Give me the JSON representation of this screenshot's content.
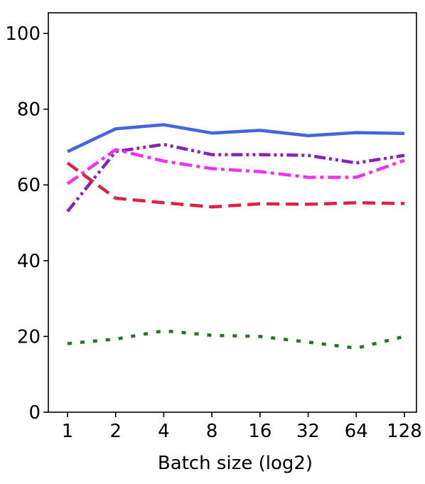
{
  "chart_data": {
    "type": "line",
    "xlabel": "Batch size (log2)",
    "ylabel": "",
    "x_scale": "log2",
    "x": [
      1,
      2,
      4,
      8,
      16,
      32,
      64,
      128
    ],
    "x_tick_labels": [
      "1",
      "2",
      "4",
      "8",
      "16",
      "32",
      "64",
      "128"
    ],
    "ylim": [
      0,
      100
    ],
    "y_ticks": [
      0,
      20,
      40,
      60,
      80,
      100
    ],
    "y_tick_labels": [
      "0",
      "20",
      "40",
      "60",
      "80",
      "100"
    ],
    "grid": false,
    "legend": "none",
    "series": [
      {
        "color": "#4466dd",
        "style": "solid",
        "values": [
          68.8,
          74.8,
          75.9,
          73.7,
          74.4,
          73.0,
          73.8,
          73.6
        ]
      },
      {
        "color": "#8822bb",
        "style": "dashdotdot",
        "values": [
          53.0,
          68.8,
          70.7,
          68.0,
          68.0,
          67.8,
          65.8,
          67.8
        ]
      },
      {
        "color": "#ee33ee",
        "style": "dashdot",
        "values": [
          60.3,
          69.3,
          66.3,
          64.3,
          63.5,
          62.0,
          62.0,
          66.5
        ]
      },
      {
        "color": "#dd2244",
        "style": "dashed",
        "values": [
          65.8,
          56.5,
          55.3,
          54.2,
          55.0,
          54.9,
          55.3,
          55.1
        ]
      },
      {
        "color": "#227722",
        "style": "dotted",
        "values": [
          18.1,
          19.3,
          21.5,
          20.3,
          20.0,
          18.5,
          16.9,
          20.0
        ]
      }
    ]
  }
}
